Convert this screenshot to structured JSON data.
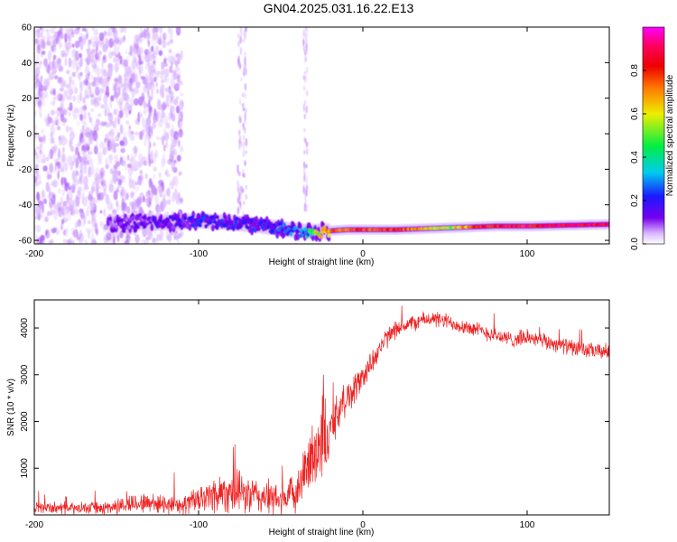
{
  "title": "GN04.2025.031.16.22.E13",
  "colors": {
    "snr_line": "#ee2222",
    "frame": "#000000",
    "colormap": [
      "#ffffff",
      "#d9b3ff",
      "#7700ee",
      "#1a1aff",
      "#00ccee",
      "#00ee44",
      "#eeee00",
      "#ff7700",
      "#ee0000",
      "#ff0066",
      "#ff00ff"
    ]
  },
  "chart_data": [
    {
      "type": "heatmap",
      "name": "spectrogram",
      "xlabel": "Height of straight line (km)",
      "ylabel": "Frequency (Hz)",
      "xlim": [
        -200,
        150
      ],
      "ylim": [
        -62,
        60
      ],
      "xticks": [
        -200,
        -100,
        0,
        100
      ],
      "xtick_labels": [
        "-200",
        "-100",
        "0",
        "100"
      ],
      "yticks": [
        60,
        40,
        20,
        0,
        -20,
        -40,
        -60
      ],
      "ytick_labels": [
        "60",
        "40",
        "20",
        "0",
        "-20",
        "-40",
        "-60"
      ],
      "grid": false,
      "colorbar": {
        "label": "Normalized spectral amplitude",
        "range": [
          0,
          1
        ],
        "ticks": [
          0.0,
          0.2,
          0.4,
          0.6,
          0.8
        ],
        "tick_labels": [
          "0.0",
          "0.2",
          "0.4",
          "0.6",
          "0.8"
        ],
        "placement": "right"
      },
      "dominant_band": {
        "x": [
          -155,
          -120,
          -100,
          -80,
          -60,
          -45,
          -35,
          -25,
          -10,
          0,
          20,
          50,
          80,
          100,
          150
        ],
        "frequency": [
          -50,
          -50,
          -49,
          -50,
          -52,
          -54,
          -55,
          -55,
          -54,
          -54,
          -54,
          -53,
          -52,
          -52,
          -51
        ],
        "amplitude": [
          0.2,
          0.25,
          0.3,
          0.3,
          0.3,
          0.35,
          0.4,
          0.7,
          0.8,
          0.85,
          0.85,
          0.6,
          0.9,
          0.9,
          0.95
        ]
      },
      "diffuse_noise": {
        "x_range": [
          -200,
          -110
        ],
        "frequency_range": [
          -62,
          60
        ],
        "amplitude_range": [
          0.05,
          0.15
        ]
      }
    },
    {
      "type": "line",
      "name": "snr",
      "xlabel": "Height of straight line (km)",
      "ylabel": "SNR (10 * v/v)",
      "xlim": [
        -200,
        150
      ],
      "ylim": [
        0,
        4600
      ],
      "xticks": [
        -200,
        -100,
        0,
        100
      ],
      "xtick_labels": [
        "-200",
        "-100",
        "0",
        "100"
      ],
      "yticks": [
        1000,
        2000,
        3000,
        4000
      ],
      "ytick_labels": [
        "1000",
        "2000",
        "3000",
        "4000"
      ],
      "grid": false,
      "series": [
        {
          "x": [
            -200,
            -190,
            -180,
            -170,
            -160,
            -150,
            -140,
            -130,
            -120,
            -110,
            -100,
            -90,
            -80,
            -70,
            -60,
            -50,
            -40,
            -35,
            -30,
            -25,
            -23,
            -21,
            -20,
            -15,
            -10,
            -5,
            0,
            5,
            10,
            15,
            20,
            25,
            30,
            40,
            50,
            60,
            70,
            80,
            90,
            100,
            110,
            120,
            130,
            140,
            150
          ],
          "values": [
            150,
            150,
            140,
            130,
            140,
            180,
            250,
            260,
            230,
            230,
            310,
            450,
            520,
            420,
            380,
            300,
            450,
            900,
            1300,
            1700,
            1900,
            1200,
            1900,
            2200,
            2500,
            2700,
            2950,
            3250,
            3550,
            3800,
            3950,
            4050,
            4100,
            4200,
            4150,
            4050,
            3950,
            3850,
            3750,
            3800,
            3700,
            3650,
            3550,
            3500,
            3500
          ],
          "noise": [
            150,
            150,
            150,
            150,
            150,
            200,
            250,
            250,
            250,
            250,
            350,
            500,
            550,
            500,
            450,
            400,
            500,
            700,
            900,
            1200,
            1300,
            500,
            600,
            500,
            450,
            400,
            350,
            300,
            300,
            250,
            200,
            200,
            200,
            200,
            200,
            200,
            200,
            200,
            200,
            200,
            200,
            200,
            200,
            200,
            200
          ]
        }
      ]
    }
  ]
}
